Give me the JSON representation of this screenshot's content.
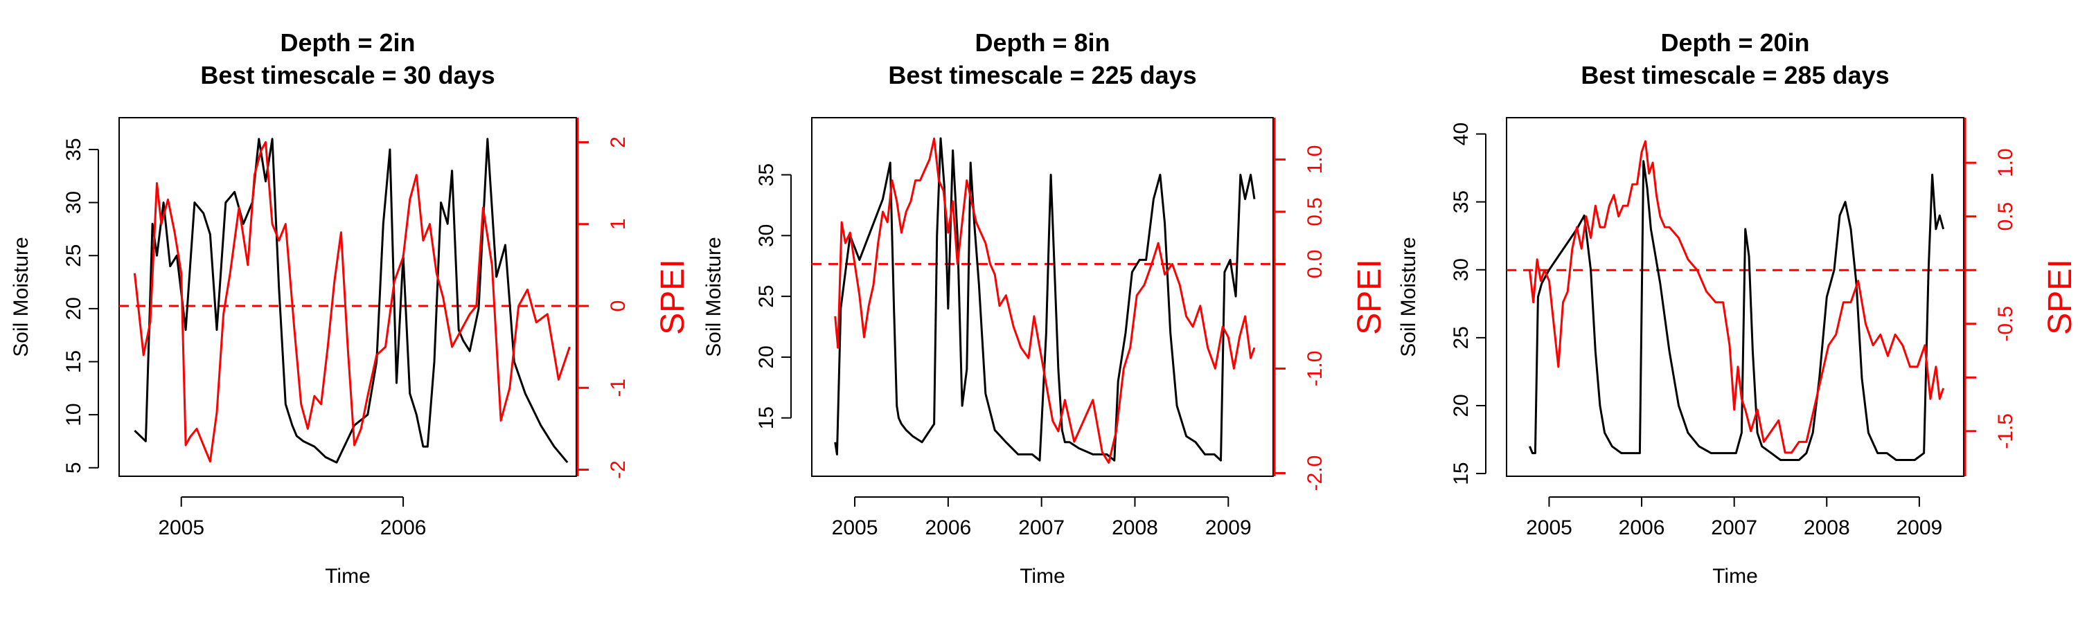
{
  "chart_data": [
    {
      "type": "line",
      "title": "Depth = 2in",
      "subtitle": "Best timescale = 30 days",
      "xlabel": "Time",
      "ylabel": "Soil Moisture",
      "y2label": "SPEI",
      "xlim": [
        2004.72,
        2006.78
      ],
      "xticks": [
        2005,
        2006
      ],
      "ylim": [
        4.2,
        38.0
      ],
      "yticks": [
        5,
        10,
        15,
        20,
        25,
        30,
        35
      ],
      "y2lim": [
        -2.08,
        2.3
      ],
      "y2ticks": [
        -2,
        -1,
        0,
        1,
        2
      ],
      "reference_line": 0,
      "colors": {
        "soil": "#000000",
        "spei": "#ff0000"
      },
      "series": [
        {
          "axis": "left",
          "x": [
            2004.79,
            2004.84,
            2004.87,
            2004.89,
            2004.92,
            2004.95,
            2004.98,
            2005.02,
            2005.06,
            2005.1,
            2005.13,
            2005.16,
            2005.2,
            2005.24,
            2005.28,
            2005.32,
            2005.35,
            2005.38,
            2005.41,
            2005.44,
            2005.47,
            2005.5,
            2005.52,
            2005.55,
            2005.6,
            2005.65,
            2005.7,
            2005.78,
            2005.84,
            2005.88,
            2005.91,
            2005.94,
            2005.97,
            2006.0,
            2006.03,
            2006.06,
            2006.09,
            2006.11,
            2006.14,
            2006.17,
            2006.2,
            2006.22,
            2006.25,
            2006.27,
            2006.3,
            2006.34,
            2006.38,
            2006.42,
            2006.46,
            2006.5,
            2006.55,
            2006.62,
            2006.68,
            2006.74
          ],
          "values": [
            8.5,
            7.5,
            28,
            25,
            30,
            24,
            25,
            18,
            30,
            29,
            27,
            18,
            30,
            31,
            28,
            30,
            36,
            32,
            36,
            22,
            11,
            9,
            8,
            7.5,
            7,
            6,
            5.5,
            9,
            10,
            15,
            28,
            35,
            13,
            25,
            12,
            10,
            7,
            7,
            15,
            30,
            28,
            33,
            18,
            17,
            16,
            20,
            36,
            23,
            26,
            15,
            12,
            9,
            7,
            5.5
          ]
        },
        {
          "axis": "right",
          "x": [
            2004.79,
            2004.83,
            2004.86,
            2004.89,
            2004.91,
            2004.94,
            2004.97,
            2005.0,
            2005.02,
            2005.04,
            2005.07,
            2005.1,
            2005.13,
            2005.16,
            2005.19,
            2005.22,
            2005.26,
            2005.3,
            2005.33,
            2005.36,
            2005.38,
            2005.41,
            2005.44,
            2005.47,
            2005.51,
            2005.54,
            2005.57,
            2005.6,
            2005.63,
            2005.66,
            2005.69,
            2005.72,
            2005.75,
            2005.78,
            2005.81,
            2005.84,
            2005.88,
            2005.92,
            2005.96,
            2006.0,
            2006.03,
            2006.06,
            2006.09,
            2006.12,
            2006.15,
            2006.18,
            2006.22,
            2006.26,
            2006.3,
            2006.33,
            2006.36,
            2006.4,
            2006.44,
            2006.48,
            2006.52,
            2006.56,
            2006.6,
            2006.65,
            2006.7,
            2006.75
          ],
          "values": [
            0.4,
            -0.6,
            -0.2,
            1.5,
            1.0,
            1.3,
            0.9,
            0.4,
            -1.7,
            -1.6,
            -1.5,
            -1.7,
            -1.9,
            -1.3,
            -0.1,
            0.4,
            1.2,
            0.5,
            1.6,
            1.9,
            2.0,
            1.0,
            0.8,
            1.0,
            -0.3,
            -1.2,
            -1.5,
            -1.1,
            -1.2,
            -0.5,
            0.3,
            0.9,
            -0.5,
            -1.7,
            -1.5,
            -1.1,
            -0.6,
            -0.5,
            0.3,
            0.6,
            1.3,
            1.6,
            0.8,
            1.0,
            0.4,
            0.1,
            -0.5,
            -0.3,
            -0.1,
            0.0,
            1.2,
            0.5,
            -1.4,
            -1.0,
            0.0,
            0.2,
            -0.2,
            -0.1,
            -0.9,
            -0.5
          ]
        }
      ]
    },
    {
      "type": "line",
      "title": "Depth = 8in",
      "subtitle": "Best timescale = 225 days",
      "xlabel": "Time",
      "ylabel": "Soil Moisture",
      "y2label": "SPEI",
      "xlim": [
        2004.54,
        2009.48
      ],
      "xticks": [
        2005,
        2006,
        2007,
        2008,
        2009
      ],
      "ylim": [
        10.2,
        39.7
      ],
      "yticks": [
        15,
        20,
        25,
        30,
        35
      ],
      "y2lim": [
        -2.03,
        1.4
      ],
      "y2ticks": [
        -2.0,
        -1.0,
        0.0,
        0.5,
        1.0
      ],
      "y2ticklabels": [
        "-2.0",
        "-1.0",
        "0.0",
        "0.5",
        "1.0"
      ],
      "reference_line": 0,
      "colors": {
        "soil": "#000000",
        "spei": "#ff0000"
      },
      "series": [
        {
          "axis": "left",
          "x": [
            2004.79,
            2004.81,
            2004.85,
            2004.9,
            2004.95,
            2005.05,
            2005.2,
            2005.3,
            2005.38,
            2005.42,
            2005.45,
            2005.47,
            2005.5,
            2005.55,
            2005.62,
            2005.72,
            2005.85,
            2005.88,
            2005.92,
            2005.96,
            2006.0,
            2006.05,
            2006.1,
            2006.15,
            2006.2,
            2006.24,
            2006.28,
            2006.33,
            2006.4,
            2006.5,
            2006.62,
            2006.75,
            2006.9,
            2006.98,
            2007.05,
            2007.08,
            2007.1,
            2007.13,
            2007.18,
            2007.22,
            2007.25,
            2007.3,
            2007.4,
            2007.55,
            2007.7,
            2007.78,
            2007.82,
            2007.9,
            2007.97,
            2008.05,
            2008.12,
            2008.2,
            2008.27,
            2008.32,
            2008.38,
            2008.45,
            2008.55,
            2008.65,
            2008.75,
            2008.85,
            2008.92,
            2008.96,
            2009.02,
            2009.08,
            2009.13,
            2009.18,
            2009.24,
            2009.28
          ],
          "values": [
            13,
            12,
            24,
            27,
            30,
            28,
            31,
            33,
            36,
            24,
            16,
            15,
            14.5,
            14,
            13.5,
            13,
            14.5,
            30,
            38,
            34,
            24,
            37,
            30,
            16,
            19,
            36,
            31,
            26,
            17,
            14,
            13,
            12,
            12,
            11.5,
            22,
            30,
            35,
            29,
            19,
            14,
            13,
            13,
            12.5,
            12,
            12,
            11.5,
            18,
            22,
            27,
            28,
            28,
            33,
            35,
            31,
            22,
            16,
            13.5,
            13,
            12,
            12,
            11.5,
            27,
            28,
            25,
            35,
            33,
            35,
            33
          ]
        },
        {
          "axis": "right",
          "x": [
            2004.79,
            2004.82,
            2004.86,
            2004.9,
            2004.95,
            2005.0,
            2005.05,
            2005.1,
            2005.15,
            2005.2,
            2005.25,
            2005.3,
            2005.35,
            2005.4,
            2005.45,
            2005.5,
            2005.55,
            2005.6,
            2005.65,
            2005.7,
            2005.75,
            2005.8,
            2005.85,
            2005.9,
            2005.95,
            2006.0,
            2006.05,
            2006.1,
            2006.15,
            2006.2,
            2006.25,
            2006.3,
            2006.35,
            2006.4,
            2006.45,
            2006.5,
            2006.55,
            2006.62,
            2006.7,
            2006.78,
            2006.86,
            2006.92,
            2007.0,
            2007.06,
            2007.12,
            2007.18,
            2007.25,
            2007.35,
            2007.45,
            2007.55,
            2007.65,
            2007.72,
            2007.8,
            2007.88,
            2007.95,
            2008.02,
            2008.1,
            2008.18,
            2008.25,
            2008.32,
            2008.4,
            2008.48,
            2008.55,
            2008.62,
            2008.7,
            2008.78,
            2008.86,
            2008.94,
            2009.0,
            2009.06,
            2009.12,
            2009.18,
            2009.24,
            2009.28
          ],
          "values": [
            -0.5,
            -0.8,
            0.4,
            0.2,
            0.3,
            0.0,
            -0.3,
            -0.7,
            -0.4,
            -0.2,
            0.2,
            0.5,
            0.4,
            0.8,
            0.6,
            0.3,
            0.5,
            0.6,
            0.8,
            0.8,
            0.9,
            1.0,
            1.2,
            0.8,
            0.7,
            0.3,
            0.6,
            0.0,
            0.4,
            0.8,
            0.6,
            0.4,
            0.3,
            0.2,
            0.0,
            -0.1,
            -0.4,
            -0.3,
            -0.6,
            -0.8,
            -0.9,
            -0.5,
            -0.9,
            -1.2,
            -1.5,
            -1.6,
            -1.3,
            -1.7,
            -1.5,
            -1.3,
            -1.8,
            -1.9,
            -1.6,
            -1.0,
            -0.8,
            -0.3,
            -0.2,
            0.0,
            0.2,
            -0.1,
            0.0,
            -0.2,
            -0.5,
            -0.6,
            -0.4,
            -0.8,
            -1.0,
            -0.6,
            -0.7,
            -1.0,
            -0.7,
            -0.5,
            -0.9,
            -0.8
          ]
        }
      ]
    },
    {
      "type": "line",
      "title": "Depth = 20in",
      "subtitle": "Best timescale = 285 days",
      "xlabel": "Time",
      "ylabel": "Soil Moisture",
      "y2label": "SPEI",
      "xlim": [
        2004.54,
        2009.48
      ],
      "xticks": [
        2005,
        2006,
        2007,
        2008,
        2009
      ],
      "ylim": [
        14.8,
        41.2
      ],
      "yticks": [
        15,
        20,
        25,
        30,
        35,
        40
      ],
      "y2lim": [
        -1.92,
        1.42
      ],
      "y2ticks": [
        -1.5,
        -1.0,
        -0.5,
        0.0,
        0.5,
        1.0
      ],
      "y2ticklabels": [
        "-1.5",
        "",
        "-0.5",
        "",
        "0.5",
        "1.0"
      ],
      "reference_line": 0,
      "colors": {
        "soil": "#000000",
        "spei": "#ff0000"
      },
      "series": [
        {
          "axis": "left",
          "x": [
            2004.79,
            2004.82,
            2004.85,
            2004.88,
            2004.92,
            2005.0,
            2005.1,
            2005.2,
            2005.3,
            2005.38,
            2005.45,
            2005.5,
            2005.55,
            2005.6,
            2005.68,
            2005.78,
            2005.9,
            2005.98,
            2006.02,
            2006.06,
            2006.1,
            2006.15,
            2006.2,
            2006.3,
            2006.4,
            2006.5,
            2006.62,
            2006.75,
            2006.9,
            2007.02,
            2007.08,
            2007.12,
            2007.16,
            2007.2,
            2007.25,
            2007.3,
            2007.4,
            2007.5,
            2007.6,
            2007.7,
            2007.78,
            2007.85,
            2007.92,
            2008.0,
            2008.08,
            2008.14,
            2008.2,
            2008.26,
            2008.32,
            2008.38,
            2008.45,
            2008.55,
            2008.65,
            2008.75,
            2008.85,
            2008.95,
            2009.05,
            2009.1,
            2009.14,
            2009.18,
            2009.22,
            2009.26
          ],
          "values": [
            17,
            16.5,
            16.5,
            28,
            29,
            30,
            31,
            32,
            33,
            34,
            30,
            24,
            20,
            18,
            17,
            16.5,
            16.5,
            16.5,
            38,
            36,
            33,
            31,
            29,
            24,
            20,
            18,
            17,
            16.5,
            16.5,
            16.5,
            18,
            33,
            31,
            24,
            18,
            17,
            16.5,
            16,
            16,
            16,
            16.5,
            18,
            22,
            28,
            30,
            34,
            35,
            33,
            29,
            22,
            18,
            16.5,
            16.5,
            16,
            16,
            16,
            16.5,
            30,
            37,
            33,
            34,
            33
          ]
        },
        {
          "axis": "right",
          "x": [
            2004.79,
            2004.83,
            2004.87,
            2004.91,
            2004.95,
            2005.0,
            2005.05,
            2005.1,
            2005.15,
            2005.2,
            2005.25,
            2005.3,
            2005.35,
            2005.4,
            2005.45,
            2005.5,
            2005.55,
            2005.6,
            2005.65,
            2005.7,
            2005.75,
            2005.8,
            2005.85,
            2005.9,
            2005.95,
            2006.0,
            2006.04,
            2006.08,
            2006.12,
            2006.16,
            2006.2,
            2006.25,
            2006.3,
            2006.4,
            2006.5,
            2006.6,
            2006.7,
            2006.8,
            2006.88,
            2006.95,
            2007.0,
            2007.04,
            2007.08,
            2007.12,
            2007.18,
            2007.25,
            2007.32,
            2007.4,
            2007.48,
            2007.55,
            2007.62,
            2007.7,
            2007.78,
            2007.86,
            2007.94,
            2008.02,
            2008.1,
            2008.18,
            2008.26,
            2008.34,
            2008.42,
            2008.5,
            2008.58,
            2008.66,
            2008.74,
            2008.82,
            2008.9,
            2008.98,
            2009.06,
            2009.12,
            2009.18,
            2009.22,
            2009.26
          ],
          "values": [
            0.0,
            -0.3,
            0.1,
            -0.1,
            0.0,
            -0.1,
            -0.5,
            -0.9,
            -0.3,
            -0.2,
            0.2,
            0.4,
            0.2,
            0.5,
            0.3,
            0.6,
            0.4,
            0.4,
            0.6,
            0.7,
            0.5,
            0.6,
            0.6,
            0.8,
            0.8,
            1.1,
            1.2,
            0.9,
            1.0,
            0.7,
            0.5,
            0.4,
            0.4,
            0.3,
            0.1,
            0.0,
            -0.2,
            -0.3,
            -0.3,
            -0.7,
            -1.3,
            -0.9,
            -1.2,
            -1.3,
            -1.5,
            -1.3,
            -1.6,
            -1.5,
            -1.4,
            -1.7,
            -1.7,
            -1.6,
            -1.6,
            -1.3,
            -1.0,
            -0.7,
            -0.6,
            -0.3,
            -0.3,
            -0.1,
            -0.5,
            -0.7,
            -0.6,
            -0.8,
            -0.6,
            -0.7,
            -0.9,
            -0.9,
            -0.7,
            -1.2,
            -0.9,
            -1.2,
            -1.1
          ]
        }
      ]
    }
  ]
}
